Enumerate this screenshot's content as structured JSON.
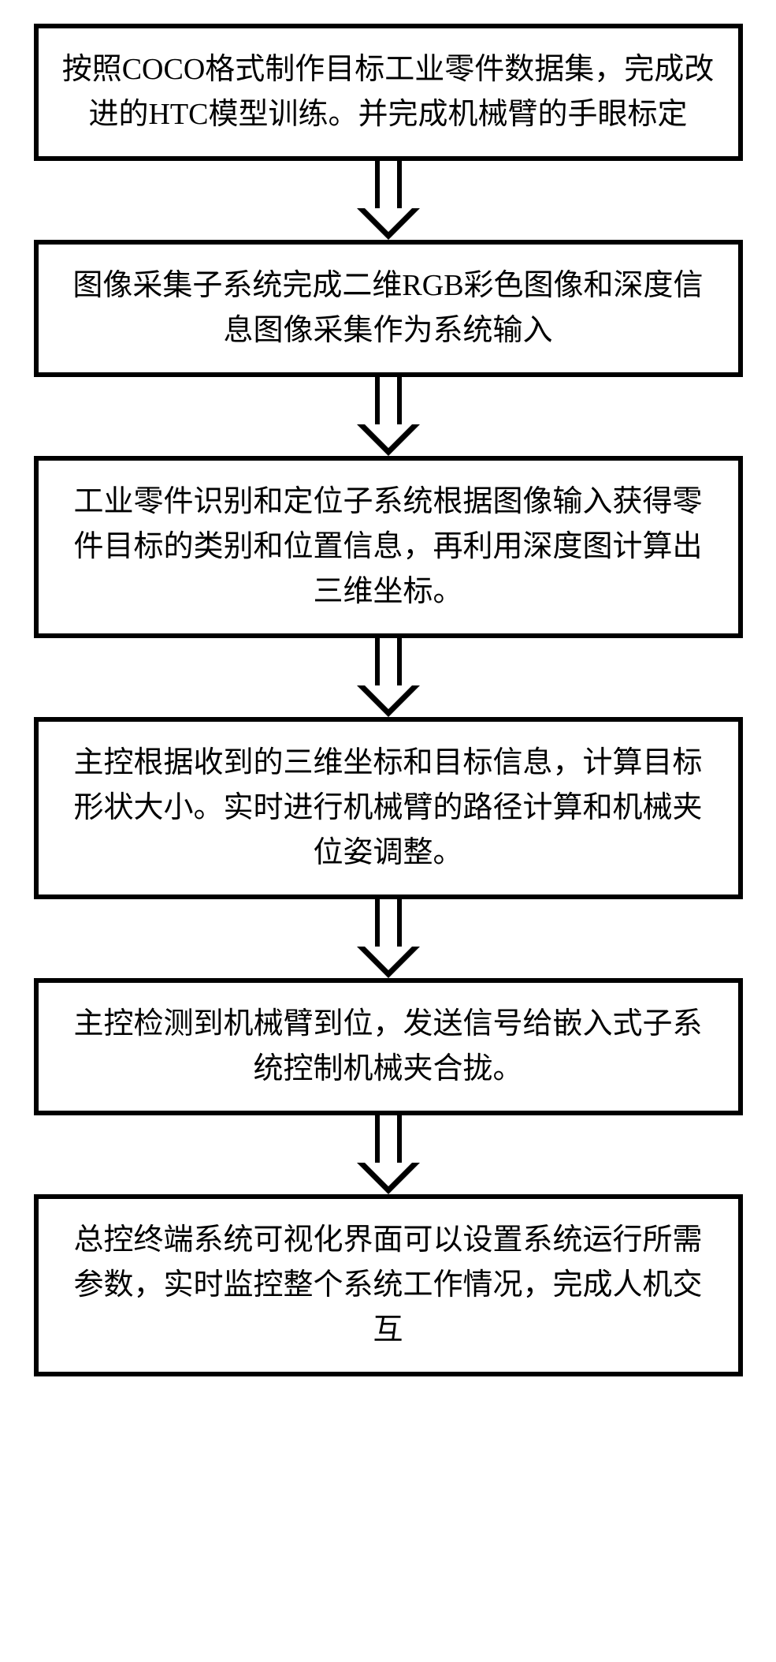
{
  "flowchart": {
    "type": "flowchart",
    "direction": "vertical",
    "box_border_color": "#000000",
    "box_border_width": 6,
    "box_background": "#ffffff",
    "text_color": "#000000",
    "font_size": 38,
    "arrow_color": "#000000",
    "arrow_shaft_width": 34,
    "arrow_shaft_height": 60,
    "arrow_head_width": 80,
    "arrow_head_height": 40,
    "steps": [
      {
        "id": "step1",
        "text": "按照COCO格式制作目标工业零件数据集，完成改进的HTC模型训练。并完成机械臂的手眼标定"
      },
      {
        "id": "step2",
        "text": "图像采集子系统完成二维RGB彩色图像和深度信息图像采集作为系统输入"
      },
      {
        "id": "step3",
        "text": "工业零件识别和定位子系统根据图像输入获得零件目标的类别和位置信息，再利用深度图计算出三维坐标。"
      },
      {
        "id": "step4",
        "text": "主控根据收到的三维坐标和目标信息，计算目标形状大小。实时进行机械臂的路径计算和机械夹位姿调整。"
      },
      {
        "id": "step5",
        "text": "主控检测到机械臂到位，发送信号给嵌入式子系统控制机械夹合拢。"
      },
      {
        "id": "step6",
        "text": "总控终端系统可视化界面可以设置系统运行所需参数，实时监控整个系统工作情况，完成人机交互"
      }
    ]
  }
}
